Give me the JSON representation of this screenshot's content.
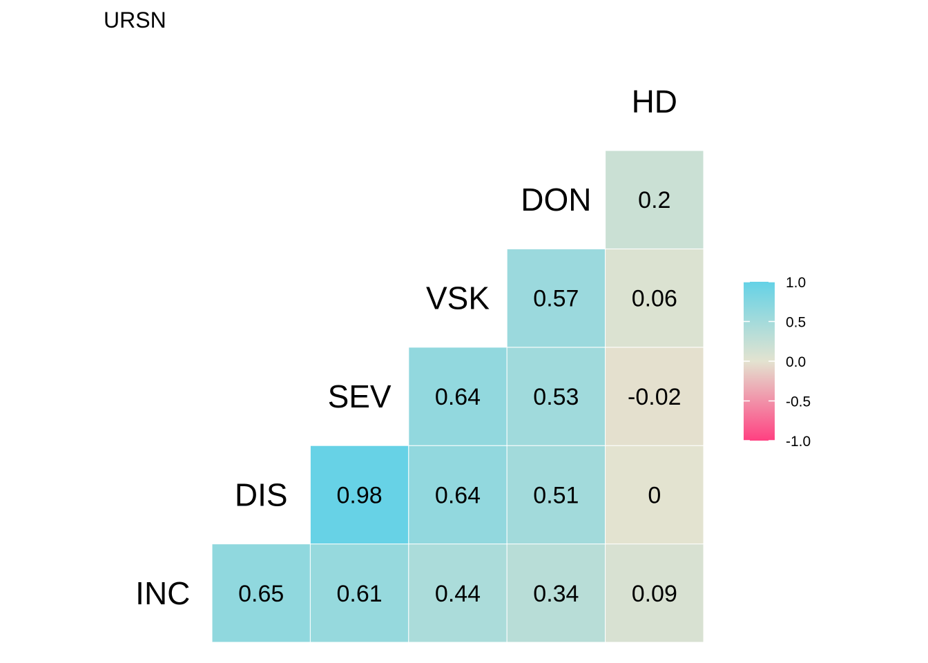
{
  "chart_data": {
    "type": "heatmap",
    "title": "URSN",
    "variables": [
      "INC",
      "DIS",
      "SEV",
      "VSK",
      "DON",
      "HD"
    ],
    "cells": [
      {
        "row": "DIS",
        "col": "INC",
        "value": 0.65
      },
      {
        "row": "SEV",
        "col": "INC",
        "value": 0.61
      },
      {
        "row": "SEV",
        "col": "DIS",
        "value": 0.98
      },
      {
        "row": "VSK",
        "col": "INC",
        "value": 0.44
      },
      {
        "row": "VSK",
        "col": "DIS",
        "value": 0.64
      },
      {
        "row": "VSK",
        "col": "SEV",
        "value": 0.64
      },
      {
        "row": "DON",
        "col": "INC",
        "value": 0.34
      },
      {
        "row": "DON",
        "col": "DIS",
        "value": 0.51
      },
      {
        "row": "DON",
        "col": "SEV",
        "value": 0.53
      },
      {
        "row": "DON",
        "col": "VSK",
        "value": 0.57
      },
      {
        "row": "HD",
        "col": "INC",
        "value": 0.09
      },
      {
        "row": "HD",
        "col": "DIS",
        "value": 0
      },
      {
        "row": "HD",
        "col": "SEV",
        "value": -0.02
      },
      {
        "row": "HD",
        "col": "VSK",
        "value": 0.06
      },
      {
        "row": "HD",
        "col": "DON",
        "value": 0.2
      }
    ],
    "color_scale": {
      "low": "#FF4081",
      "mid": "#E3E3D0",
      "high": "#64D2E6",
      "limits": [
        -1,
        1
      ]
    },
    "legend": {
      "ticks": [
        "1.0",
        "0.5",
        "0.0",
        "-0.5",
        "-1.0"
      ],
      "tick_values": [
        1,
        0.5,
        0,
        -0.5,
        -1
      ],
      "placement": "right"
    }
  }
}
